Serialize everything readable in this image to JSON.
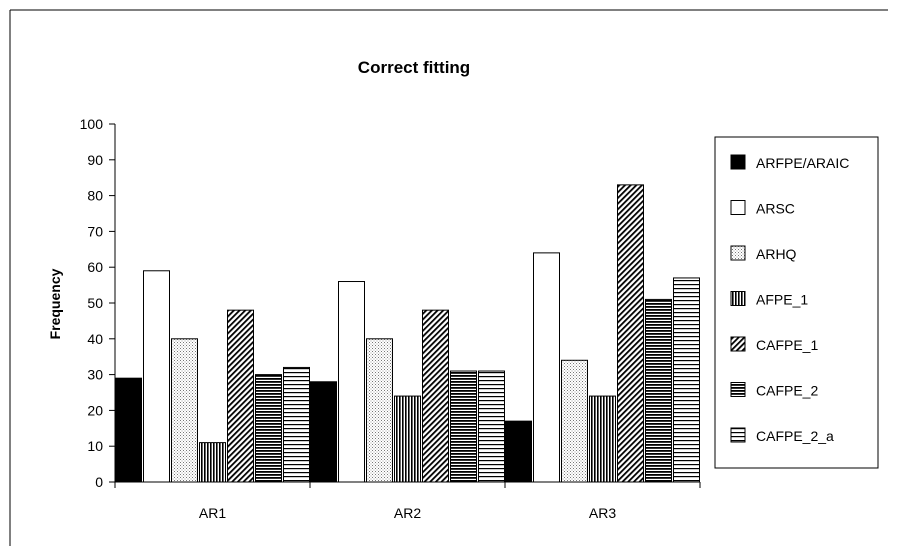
{
  "chart_data": {
    "type": "bar",
    "title": "Correct fitting",
    "xlabel": "",
    "ylabel": "Frequency",
    "ylim": [
      0,
      100
    ],
    "yticks": [
      0,
      10,
      20,
      30,
      40,
      50,
      60,
      70,
      80,
      90,
      100
    ],
    "grid": false,
    "legend_position": "right",
    "categories": [
      "AR1",
      "AR2",
      "AR3"
    ],
    "series": [
      {
        "name": "ARFPE/ARAIC",
        "pattern": "solid-black",
        "values": [
          29,
          28,
          17
        ]
      },
      {
        "name": "ARSC",
        "pattern": "white",
        "values": [
          59,
          56,
          64
        ]
      },
      {
        "name": "ARHQ",
        "pattern": "fine-dots",
        "values": [
          40,
          40,
          34
        ]
      },
      {
        "name": "AFPE_1",
        "pattern": "vertical-lines",
        "values": [
          11,
          24,
          24
        ]
      },
      {
        "name": "CAFPE_1",
        "pattern": "diagonal-lines",
        "values": [
          48,
          48,
          83
        ]
      },
      {
        "name": "CAFPE_2",
        "pattern": "dense-horizontal",
        "values": [
          30,
          31,
          51
        ]
      },
      {
        "name": "CAFPE_2_a",
        "pattern": "horizontal-lines",
        "values": [
          32,
          31,
          57
        ]
      }
    ]
  }
}
